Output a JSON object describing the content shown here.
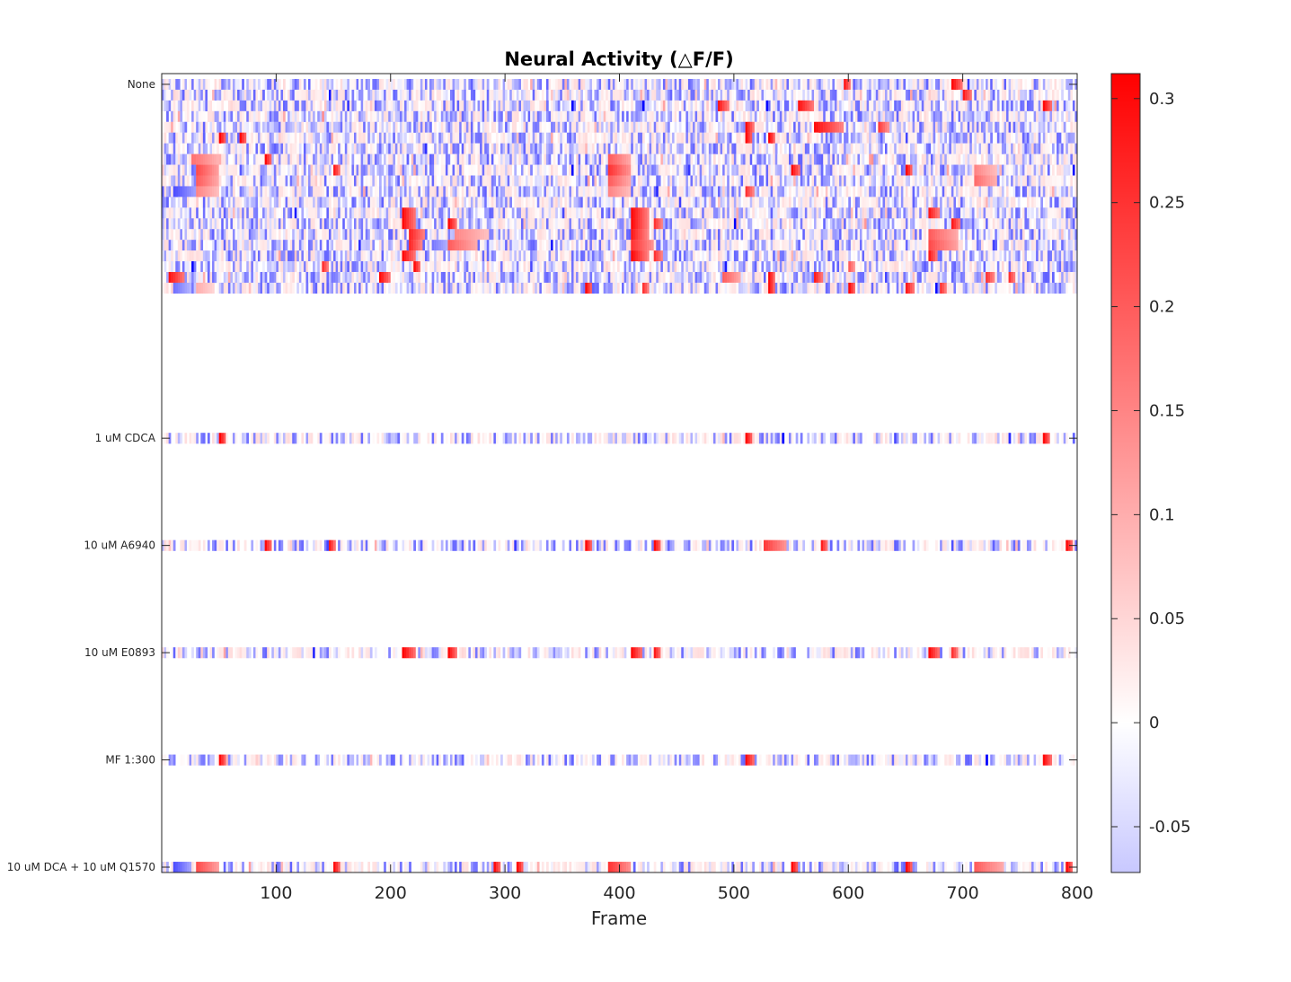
{
  "chart_data": {
    "type": "heatmap",
    "title": "Neural Activity (△F/F)",
    "xlabel": "Frame",
    "ylabel": "",
    "xlim": [
      0,
      800
    ],
    "x_ticks": [
      100,
      200,
      300,
      400,
      500,
      600,
      700,
      800
    ],
    "row_groups": [
      "None",
      "1 uM CDCA",
      "10 uM A6940",
      "10 uM E0893",
      "MF 1:300",
      "10 uM DCA + 10 uM Q1570"
    ],
    "num_rows": 74,
    "colorbar": {
      "range": [
        -0.072,
        0.312
      ],
      "ticks": [
        -0.05,
        0,
        0.05,
        0.1,
        0.15,
        0.2,
        0.25,
        0.3
      ],
      "tick_labels": [
        "-0.05",
        "0",
        "0.05",
        "0.1",
        "0.15",
        "0.2",
        "0.25",
        "0.3"
      ],
      "colors": {
        "neg": "#0000ff",
        "zero": "#ffffff",
        "pos": "#ff0000"
      }
    },
    "series": [
      {
        "row": 1,
        "events": [
          [
            595,
            6,
            0.31
          ],
          [
            690,
            10,
            0.3
          ]
        ]
      },
      {
        "row": 2,
        "events": [
          [
            10,
            6,
            0.05
          ],
          [
            700,
            8,
            0.28
          ]
        ]
      },
      {
        "row": 3,
        "events": [
          [
            485,
            10,
            0.3
          ],
          [
            555,
            15,
            0.3
          ],
          [
            770,
            8,
            0.3
          ]
        ]
      },
      {
        "row": 5,
        "events": [
          [
            510,
            7,
            0.3
          ],
          [
            570,
            25,
            0.3
          ],
          [
            625,
            10,
            0.25
          ]
        ]
      },
      {
        "row": 6,
        "events": [
          [
            50,
            6,
            0.31
          ],
          [
            68,
            6,
            0.3
          ],
          [
            510,
            6,
            0.31
          ],
          [
            530,
            6,
            0.31
          ]
        ]
      },
      {
        "row": 8,
        "events": [
          [
            25,
            25,
            0.18
          ],
          [
            90,
            6,
            0.3
          ],
          [
            390,
            20,
            0.2
          ]
        ]
      },
      {
        "row": 9,
        "events": [
          [
            30,
            20,
            0.22
          ],
          [
            150,
            6,
            0.28
          ],
          [
            390,
            20,
            0.25
          ],
          [
            550,
            8,
            0.3
          ],
          [
            650,
            6,
            0.3
          ],
          [
            710,
            20,
            0.15
          ]
        ]
      },
      {
        "row": 10,
        "events": [
          [
            30,
            20,
            0.2
          ],
          [
            390,
            20,
            0.2
          ],
          [
            710,
            20,
            0.18
          ]
        ]
      },
      {
        "row": 11,
        "events": [
          [
            10,
            20,
            -0.05
          ],
          [
            30,
            20,
            0.15
          ],
          [
            390,
            20,
            0.15
          ],
          [
            510,
            8,
            0.25
          ]
        ]
      },
      {
        "row": 13,
        "events": [
          [
            210,
            12,
            0.3
          ],
          [
            410,
            15,
            0.3
          ],
          [
            670,
            10,
            0.28
          ]
        ]
      },
      {
        "row": 14,
        "events": [
          [
            210,
            12,
            0.3
          ],
          [
            250,
            8,
            0.3
          ],
          [
            410,
            15,
            0.3
          ],
          [
            430,
            8,
            0.25
          ],
          [
            690,
            8,
            0.28
          ]
        ]
      },
      {
        "row": 15,
        "events": [
          [
            215,
            15,
            0.28
          ],
          [
            255,
            30,
            0.15
          ],
          [
            410,
            15,
            0.28
          ],
          [
            670,
            25,
            0.2
          ]
        ]
      },
      {
        "row": 16,
        "events": [
          [
            215,
            12,
            0.28
          ],
          [
            235,
            15,
            -0.04
          ],
          [
            250,
            25,
            0.2
          ],
          [
            410,
            20,
            0.25
          ],
          [
            670,
            25,
            0.22
          ]
        ]
      },
      {
        "row": 17,
        "events": [
          [
            210,
            12,
            0.3
          ],
          [
            410,
            15,
            0.3
          ],
          [
            430,
            8,
            0.25
          ],
          [
            670,
            8,
            0.28
          ]
        ]
      },
      {
        "row": 18,
        "events": [
          [
            140,
            6,
            0.25
          ],
          [
            220,
            6,
            0.3
          ],
          [
            600,
            6,
            0.2
          ]
        ]
      },
      {
        "row": 19,
        "events": [
          [
            5,
            15,
            0.3
          ],
          [
            190,
            10,
            0.3
          ],
          [
            490,
            15,
            0.2
          ],
          [
            530,
            6,
            0.3
          ],
          [
            570,
            8,
            0.28
          ],
          [
            720,
            8,
            0.25
          ],
          [
            740,
            6,
            0.25
          ]
        ]
      },
      {
        "row": 20,
        "events": [
          [
            10,
            15,
            -0.04
          ],
          [
            30,
            15,
            0.1
          ],
          [
            370,
            6,
            0.3
          ],
          [
            420,
            6,
            0.25
          ],
          [
            530,
            6,
            0.3
          ],
          [
            600,
            6,
            0.3
          ],
          [
            650,
            8,
            0.28
          ],
          [
            680,
            6,
            0.25
          ]
        ]
      },
      {
        "row": 34,
        "events": [
          [
            50,
            6,
            0.31
          ],
          [
            510,
            6,
            0.31
          ],
          [
            770,
            6,
            0.3
          ]
        ]
      },
      {
        "row": 44,
        "events": [
          [
            90,
            6,
            0.3
          ],
          [
            145,
            6,
            0.3
          ],
          [
            370,
            6,
            0.3
          ],
          [
            430,
            6,
            0.3
          ],
          [
            525,
            20,
            0.25
          ],
          [
            575,
            6,
            0.3
          ],
          [
            790,
            6,
            0.3
          ]
        ]
      },
      {
        "row": 54,
        "events": [
          [
            210,
            12,
            0.31
          ],
          [
            250,
            8,
            0.3
          ],
          [
            410,
            10,
            0.3
          ],
          [
            430,
            6,
            0.28
          ],
          [
            670,
            10,
            0.3
          ],
          [
            690,
            6,
            0.25
          ]
        ]
      },
      {
        "row": 64,
        "events": [
          [
            50,
            6,
            0.3
          ],
          [
            510,
            8,
            0.3
          ],
          [
            770,
            8,
            0.3
          ]
        ]
      },
      {
        "row": 74,
        "events": [
          [
            10,
            15,
            -0.05
          ],
          [
            30,
            20,
            0.22
          ],
          [
            150,
            6,
            0.3
          ],
          [
            290,
            6,
            0.3
          ],
          [
            310,
            6,
            0.3
          ],
          [
            390,
            20,
            0.25
          ],
          [
            550,
            6,
            0.31
          ],
          [
            650,
            6,
            0.3
          ],
          [
            710,
            25,
            0.2
          ],
          [
            790,
            6,
            0.3
          ]
        ]
      }
    ]
  }
}
